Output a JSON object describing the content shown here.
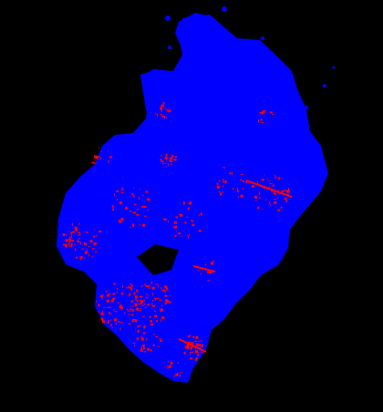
{
  "image": {
    "background_color": "#000000",
    "region_color": "#0000ff",
    "highlight_color": "#ff0000",
    "description_visible_text": ""
  }
}
